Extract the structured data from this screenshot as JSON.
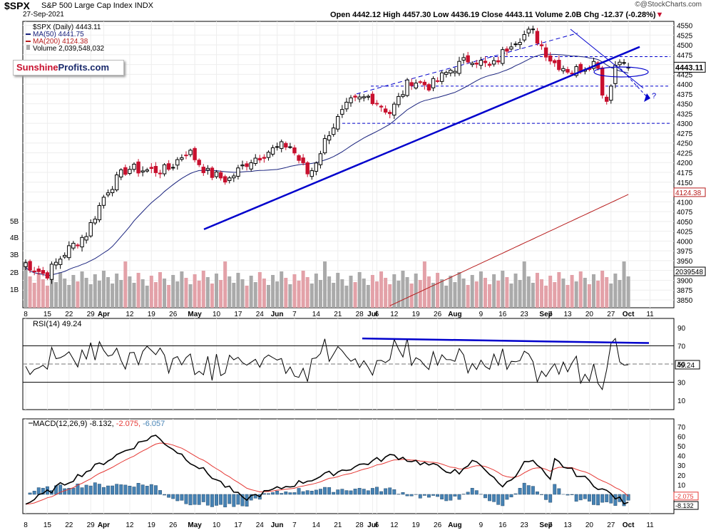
{
  "header": {
    "symbol": "$SPX",
    "name": "S&P 500 Large Cap Index",
    "exchange": "INDX",
    "date": "27-Sep-2021",
    "quote": "Open 4442.12  High 4457.30  Low 4436.19  Close 4443.11  Volume 2.0B  Chg -12.37 (-0.28%)",
    "quote_arrow": "▼",
    "credit": "@StockCharts.com",
    "credit_symbol": "©"
  },
  "legend": {
    "main": "$SPX (Daily) 4443.11",
    "ma50": "MA(50) 4441.75",
    "ma200": "MA(200) 4124.38",
    "volume": "Volume 2,039,548,032"
  },
  "logo": {
    "part1": "Sunshine",
    "part2": "Profits.com"
  },
  "last_price_label": "4443.11",
  "ma200_label": "4124.38",
  "volume_label": "2039548",
  "question_mark": "?",
  "x_labels": [
    {
      "i": 0,
      "t": "8",
      "bold": false
    },
    {
      "i": 5,
      "t": "15",
      "bold": false
    },
    {
      "i": 10,
      "t": "22",
      "bold": false
    },
    {
      "i": 15,
      "t": "29",
      "bold": false
    },
    {
      "i": 18,
      "t": "Apr",
      "bold": true
    },
    {
      "i": 24,
      "t": "12",
      "bold": false
    },
    {
      "i": 29,
      "t": "19",
      "bold": false
    },
    {
      "i": 34,
      "t": "26",
      "bold": false
    },
    {
      "i": 39,
      "t": "May",
      "bold": true
    },
    {
      "i": 44,
      "t": "10",
      "bold": false
    },
    {
      "i": 49,
      "t": "17",
      "bold": false
    },
    {
      "i": 54,
      "t": "24",
      "bold": false
    },
    {
      "i": 58,
      "t": "Jun",
      "bold": true
    },
    {
      "i": 62,
      "t": "7",
      "bold": false
    },
    {
      "i": 67,
      "t": "14",
      "bold": false
    },
    {
      "i": 72,
      "t": "21",
      "bold": false
    },
    {
      "i": 77,
      "t": "28",
      "bold": false
    },
    {
      "i": 80,
      "t": "Jul",
      "bold": true
    },
    {
      "i": 81,
      "t": "6",
      "bold": false
    },
    {
      "i": 85,
      "t": "12",
      "bold": false
    },
    {
      "i": 90,
      "t": "19",
      "bold": false
    },
    {
      "i": 95,
      "t": "26",
      "bold": false
    },
    {
      "i": 99,
      "t": "Aug",
      "bold": true
    },
    {
      "i": 105,
      "t": "9",
      "bold": false
    },
    {
      "i": 110,
      "t": "16",
      "bold": false
    },
    {
      "i": 115,
      "t": "23",
      "bold": false
    },
    {
      "i": 120,
      "t": "Sep",
      "bold": true
    },
    {
      "i": 121,
      "t": "7",
      "bold": false
    },
    {
      "i": 125,
      "t": "13",
      "bold": false
    },
    {
      "i": 130,
      "t": "20",
      "bold": false
    },
    {
      "i": 135,
      "t": "27",
      "bold": false
    },
    {
      "i": 139,
      "t": "Oct",
      "bold": true
    },
    {
      "i": 144,
      "t": "11",
      "bold": false
    }
  ],
  "price_ticks": [
    3850,
    3875,
    3900,
    3925,
    3950,
    3975,
    4000,
    4025,
    4050,
    4075,
    4100,
    4125,
    4150,
    4175,
    4200,
    4225,
    4250,
    4275,
    4300,
    4325,
    4350,
    4375,
    4400,
    4425,
    4450,
    4475,
    4500,
    4525,
    4550
  ],
  "volume_ticks": [
    "1B",
    "2B",
    "3B",
    "4B",
    "5B"
  ],
  "rsi": {
    "label": "RSI(14) 49.24",
    "value_label": "49.24",
    "ticks": [
      10,
      30,
      50,
      70,
      90
    ]
  },
  "macd": {
    "label_prefix": "MACD(12,26,9)",
    "macd": "-8.132,",
    "signal": "-2.075,",
    "hist": "-6.057",
    "ticks": [
      60,
      50,
      40,
      30,
      20,
      10,
      0,
      -10,
      -20,
      -30,
      -40,
      -50,
      -60,
      -70,
      -80
    ],
    "ticks_right": [
      70,
      60,
      50,
      40,
      30,
      20,
      10,
      0
    ],
    "label_a": "-2.075",
    "label_b": "-8.132"
  },
  "colors": {
    "up": "#000000",
    "down": "#c8102e",
    "ma50": "#1a237e",
    "ma200": "#b71c1c",
    "trend": "#0000cc",
    "macd_line": "#000000",
    "macd_signal": "#e53935",
    "hist": "#4682b4",
    "vol_up": "#aaaaaa",
    "vol_down": "#e3a1a8"
  },
  "chart_data": {
    "type": "candlestick",
    "title": "$SPX S&P 500 Large Cap Index",
    "ylim": [
      3830,
      4560
    ],
    "x_range_start": "8-Mar-2021",
    "x_range_end": "27-Sep-2021",
    "last": {
      "open": 4442.12,
      "high": 4457.3,
      "low": 4436.19,
      "close": 4443.11,
      "volume": "2.0B",
      "change": -12.37,
      "change_pct": "-0.28%"
    },
    "ma50": 4441.75,
    "ma200": 4124.38,
    "rsi14": 49.24,
    "macd": {
      "macd": -8.132,
      "signal": -2.075,
      "histogram": -6.057
    },
    "weekly_closes": [
      {
        "week": "8 Mar",
        "close": 3943
      },
      {
        "week": "15 Mar",
        "close": 3913
      },
      {
        "week": "22 Mar",
        "close": 3974
      },
      {
        "week": "29 Mar",
        "close": 4019
      },
      {
        "week": "5 Apr",
        "close": 4128
      },
      {
        "week": "12 Apr",
        "close": 4185
      },
      {
        "week": "19 Apr",
        "close": 4180
      },
      {
        "week": "26 Apr",
        "close": 4181
      },
      {
        "week": "3 May",
        "close": 4232
      },
      {
        "week": "10 May",
        "close": 4173
      },
      {
        "week": "17 May",
        "close": 4155
      },
      {
        "week": "24 May",
        "close": 4204
      },
      {
        "week": "1 Jun",
        "close": 4229
      },
      {
        "week": "7 Jun",
        "close": 4247
      },
      {
        "week": "14 Jun",
        "close": 4166
      },
      {
        "week": "21 Jun",
        "close": 4280
      },
      {
        "week": "28 Jun",
        "close": 4352
      },
      {
        "week": "6 Jul",
        "close": 4369
      },
      {
        "week": "12 Jul",
        "close": 4327
      },
      {
        "week": "19 Jul",
        "close": 4411
      },
      {
        "week": "26 Jul",
        "close": 4395
      },
      {
        "week": "2 Aug",
        "close": 4437
      },
      {
        "week": "9 Aug",
        "close": 4468
      },
      {
        "week": "16 Aug",
        "close": 4441
      },
      {
        "week": "23 Aug",
        "close": 4509
      },
      {
        "week": "30 Aug",
        "close": 4535
      },
      {
        "week": "7 Sep",
        "close": 4458
      },
      {
        "week": "13 Sep",
        "close": 4432
      },
      {
        "week": "20 Sep",
        "close": 4455
      },
      {
        "week": "27 Sep",
        "close": 4443
      }
    ],
    "horizontal_levels": [
      4470,
      4395,
      4300,
      4375
    ]
  }
}
